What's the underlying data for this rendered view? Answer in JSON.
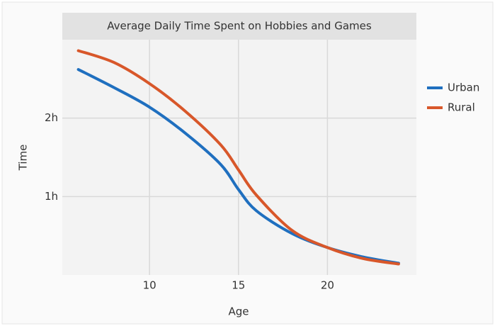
{
  "chart_data": {
    "type": "line",
    "title": "Average Daily Time Spent on Hobbies and Games",
    "x_label": "Age",
    "y_label": "Time",
    "x": [
      6,
      8,
      10,
      12,
      14,
      15,
      16,
      18,
      20,
      22,
      24
    ],
    "series": [
      {
        "name": "Urban",
        "color": "#1f6fbf",
        "values": [
          2.62,
          2.39,
          2.14,
          1.81,
          1.41,
          1.09,
          0.82,
          0.53,
          0.35,
          0.23,
          0.15
        ]
      },
      {
        "name": "Rural",
        "color": "#d8572a",
        "values": [
          2.86,
          2.71,
          2.44,
          2.09,
          1.66,
          1.34,
          1.02,
          0.57,
          0.35,
          0.21,
          0.14
        ]
      }
    ],
    "xlim": [
      5.1,
      25
    ],
    "xticks": [
      10,
      15,
      20
    ],
    "ylim": [
      0,
      3
    ],
    "yticks": [
      {
        "value": 1,
        "label": "1h"
      },
      {
        "value": 2,
        "label": "2h"
      }
    ],
    "grid": true,
    "legend": "right"
  }
}
